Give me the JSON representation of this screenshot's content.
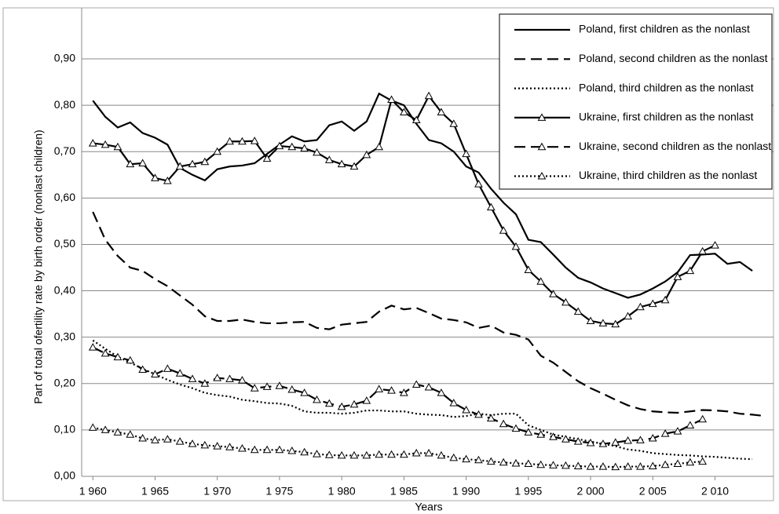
{
  "chart_data": {
    "type": "line",
    "xlabel": "Years",
    "ylabel": "Part of total ofertility rate by birth order (nonlast children)",
    "x": [
      1960,
      1961,
      1962,
      1963,
      1964,
      1965,
      1966,
      1967,
      1968,
      1969,
      1970,
      1971,
      1972,
      1973,
      1974,
      1975,
      1976,
      1977,
      1978,
      1979,
      1980,
      1981,
      1982,
      1983,
      1984,
      1985,
      1986,
      1987,
      1988,
      1989,
      1990,
      1991,
      1992,
      1993,
      1994,
      1995,
      1996,
      1997,
      1998,
      1999,
      2000,
      2001,
      2002,
      2003,
      2004,
      2005,
      2006,
      2007,
      2008,
      2009,
      2010,
      2011,
      2012,
      2013,
      2014
    ],
    "xlim": [
      1959.1,
      2014.7
    ],
    "xticks": [
      {
        "value": 1960,
        "label": "1 960"
      },
      {
        "value": 1965,
        "label": "1 965"
      },
      {
        "value": 1970,
        "label": "1 970"
      },
      {
        "value": 1975,
        "label": "1 975"
      },
      {
        "value": 1980,
        "label": "1 980"
      },
      {
        "value": 1985,
        "label": "1 985"
      },
      {
        "value": 1990,
        "label": "1 990"
      },
      {
        "value": 1995,
        "label": "1 995"
      },
      {
        "value": 2000,
        "label": "2 000"
      },
      {
        "value": 2005,
        "label": "2 005"
      },
      {
        "value": 2010,
        "label": "2 010"
      }
    ],
    "ylim": [
      0,
      0.9
    ],
    "yticks": [
      {
        "value": 0,
        "label": "0,00"
      },
      {
        "value": 0.1,
        "label": "0,10"
      },
      {
        "value": 0.2,
        "label": "0,20"
      },
      {
        "value": 0.3,
        "label": "0,30"
      },
      {
        "value": 0.4,
        "label": "0,40"
      },
      {
        "value": 0.5,
        "label": "0,50"
      },
      {
        "value": 0.6,
        "label": "0,60"
      },
      {
        "value": 0.7,
        "label": "0,70"
      },
      {
        "value": 0.8,
        "label": "0,80"
      },
      {
        "value": 0.9,
        "label": "0,90"
      }
    ],
    "grid": true,
    "legend": "top-right",
    "series": [
      {
        "name": "Poland, first children as the nonlast",
        "color": "#000000",
        "style": "solid",
        "values": [
          0.81,
          0.775,
          0.752,
          0.763,
          0.74,
          0.73,
          0.715,
          0.665,
          0.65,
          0.638,
          0.662,
          0.668,
          0.67,
          0.675,
          0.695,
          0.715,
          0.733,
          0.722,
          0.725,
          0.757,
          0.765,
          0.745,
          0.765,
          0.825,
          0.81,
          0.8,
          0.76,
          0.725,
          0.718,
          0.7,
          0.668,
          0.655,
          0.62,
          0.59,
          0.565,
          0.51,
          0.505,
          0.478,
          0.45,
          0.428,
          0.418,
          0.405,
          0.395,
          0.385,
          0.392,
          0.405,
          0.42,
          0.44,
          0.477,
          0.478,
          0.48,
          0.458,
          0.462,
          0.443,
          null
        ]
      },
      {
        "name": "Poland, second children as the nonlast",
        "color": "#000000",
        "style": "dashed",
        "values": [
          0.57,
          0.51,
          0.475,
          0.45,
          0.443,
          0.425,
          0.41,
          0.39,
          0.37,
          0.345,
          0.335,
          0.335,
          0.338,
          0.333,
          0.33,
          0.33,
          0.332,
          0.333,
          0.32,
          0.317,
          0.327,
          0.33,
          0.333,
          0.355,
          0.368,
          0.36,
          0.363,
          0.352,
          0.34,
          0.337,
          0.332,
          0.32,
          0.325,
          0.31,
          0.305,
          0.295,
          0.26,
          0.245,
          0.225,
          0.205,
          0.19,
          0.178,
          0.165,
          0.153,
          0.145,
          0.14,
          0.138,
          0.137,
          0.14,
          0.143,
          0.142,
          0.14,
          0.135,
          0.133,
          0.13
        ]
      },
      {
        "name": "Poland, third children as the nonlast",
        "color": "#000000",
        "style": "dotted",
        "values": [
          0.293,
          0.275,
          0.258,
          0.245,
          0.232,
          0.22,
          0.208,
          0.198,
          0.19,
          0.18,
          0.175,
          0.172,
          0.165,
          0.162,
          0.158,
          0.157,
          0.152,
          0.14,
          0.137,
          0.137,
          0.135,
          0.137,
          0.142,
          0.142,
          0.14,
          0.14,
          0.135,
          0.133,
          0.132,
          0.128,
          0.13,
          0.135,
          0.132,
          0.135,
          0.135,
          0.11,
          0.1,
          0.09,
          0.085,
          0.08,
          0.075,
          0.07,
          0.065,
          0.058,
          0.055,
          0.05,
          0.048,
          0.046,
          0.045,
          0.043,
          0.042,
          0.04,
          0.038,
          0.037,
          null
        ]
      },
      {
        "name": "Ukraine, first children as the nonlast",
        "color": "#000000",
        "style": "solid",
        "marker": "triangle",
        "values": [
          0.718,
          0.715,
          0.71,
          0.673,
          0.675,
          0.643,
          0.637,
          0.668,
          0.673,
          0.678,
          0.7,
          0.722,
          0.722,
          0.723,
          0.685,
          0.712,
          0.71,
          0.707,
          0.698,
          0.682,
          0.673,
          0.668,
          0.693,
          0.71,
          0.812,
          0.785,
          0.768,
          0.82,
          0.785,
          0.76,
          0.695,
          0.63,
          0.58,
          0.53,
          0.495,
          0.445,
          0.42,
          0.393,
          0.375,
          0.355,
          0.335,
          0.33,
          0.328,
          0.345,
          0.365,
          0.372,
          0.38,
          0.43,
          0.443,
          0.485,
          0.498,
          null,
          null,
          null,
          null
        ]
      },
      {
        "name": "Ukraine, second children as the nonlast",
        "color": "#000000",
        "style": "dashed",
        "marker": "triangle",
        "values": [
          0.278,
          0.265,
          0.257,
          0.25,
          0.23,
          0.22,
          0.232,
          0.222,
          0.21,
          0.2,
          0.212,
          0.21,
          0.207,
          0.19,
          0.193,
          0.195,
          0.187,
          0.18,
          0.165,
          0.157,
          0.15,
          0.155,
          0.163,
          0.188,
          0.185,
          0.18,
          0.198,
          0.192,
          0.18,
          0.158,
          0.143,
          0.133,
          0.125,
          0.113,
          0.103,
          0.095,
          0.09,
          0.085,
          0.08,
          0.075,
          0.072,
          0.07,
          0.073,
          0.077,
          0.078,
          0.082,
          0.092,
          0.097,
          0.11,
          0.123,
          null,
          null,
          null,
          null,
          null
        ]
      },
      {
        "name": "Ukraine, third children as the nonlast",
        "color": "#000000",
        "style": "dotted",
        "marker": "triangle",
        "values": [
          0.105,
          0.1,
          0.095,
          0.09,
          0.082,
          0.078,
          0.08,
          0.075,
          0.07,
          0.067,
          0.065,
          0.063,
          0.06,
          0.057,
          0.057,
          0.057,
          0.055,
          0.052,
          0.048,
          0.046,
          0.045,
          0.045,
          0.045,
          0.047,
          0.047,
          0.047,
          0.05,
          0.05,
          0.045,
          0.04,
          0.037,
          0.035,
          0.032,
          0.03,
          0.028,
          0.027,
          0.025,
          0.024,
          0.023,
          0.022,
          0.021,
          0.021,
          0.02,
          0.021,
          0.021,
          0.022,
          0.025,
          0.027,
          0.03,
          0.032,
          null,
          null,
          null,
          null,
          null
        ]
      }
    ]
  }
}
